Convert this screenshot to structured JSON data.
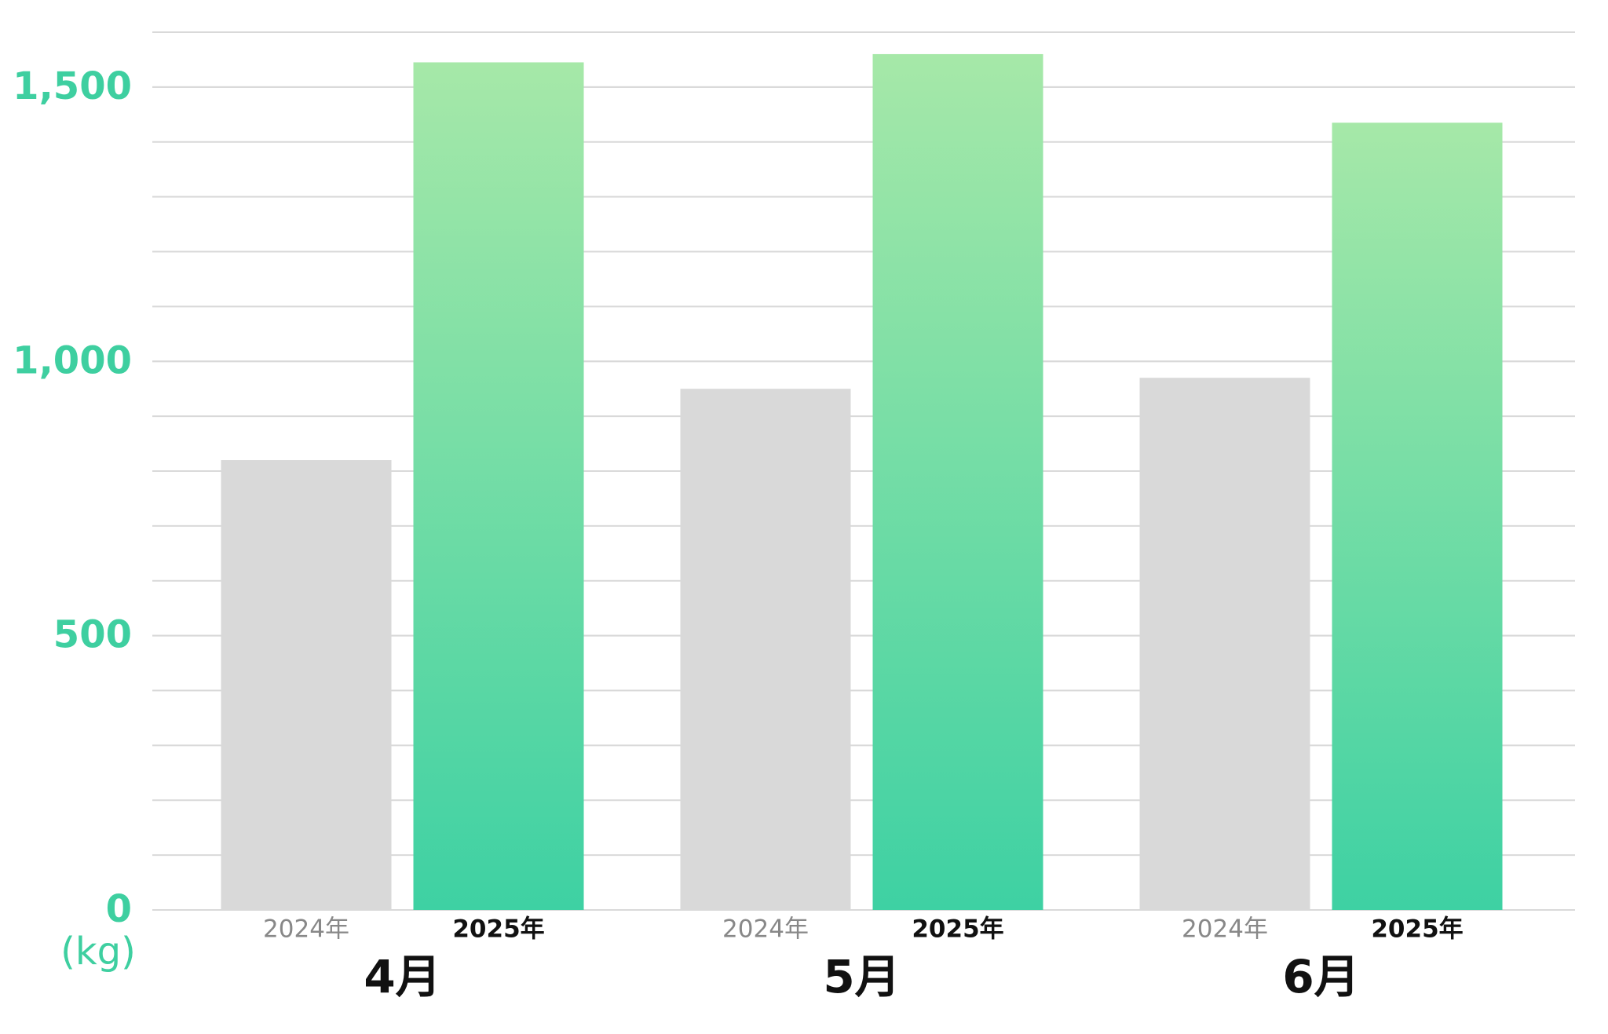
{
  "chart_data": {
    "type": "bar",
    "categories": [
      "4月",
      "5月",
      "6月"
    ],
    "series": [
      {
        "name": "2024年",
        "color": "#d9d9d9",
        "values": [
          820,
          950,
          970
        ]
      },
      {
        "name": "2025年",
        "color": "#3ed1a3",
        "gradient_top": "#a6e8a8",
        "values": [
          1545,
          1560,
          1435
        ]
      }
    ],
    "ylim": [
      0,
      1600
    ],
    "yticks": [
      0,
      500,
      {
        "value": 1000,
        "label": "1,000"
      },
      {
        "value": 1500,
        "label": "1,500"
      }
    ],
    "y_unit": "(kg)",
    "grid": true,
    "grid_step": 100,
    "tick_color": "#3ecfa0"
  }
}
